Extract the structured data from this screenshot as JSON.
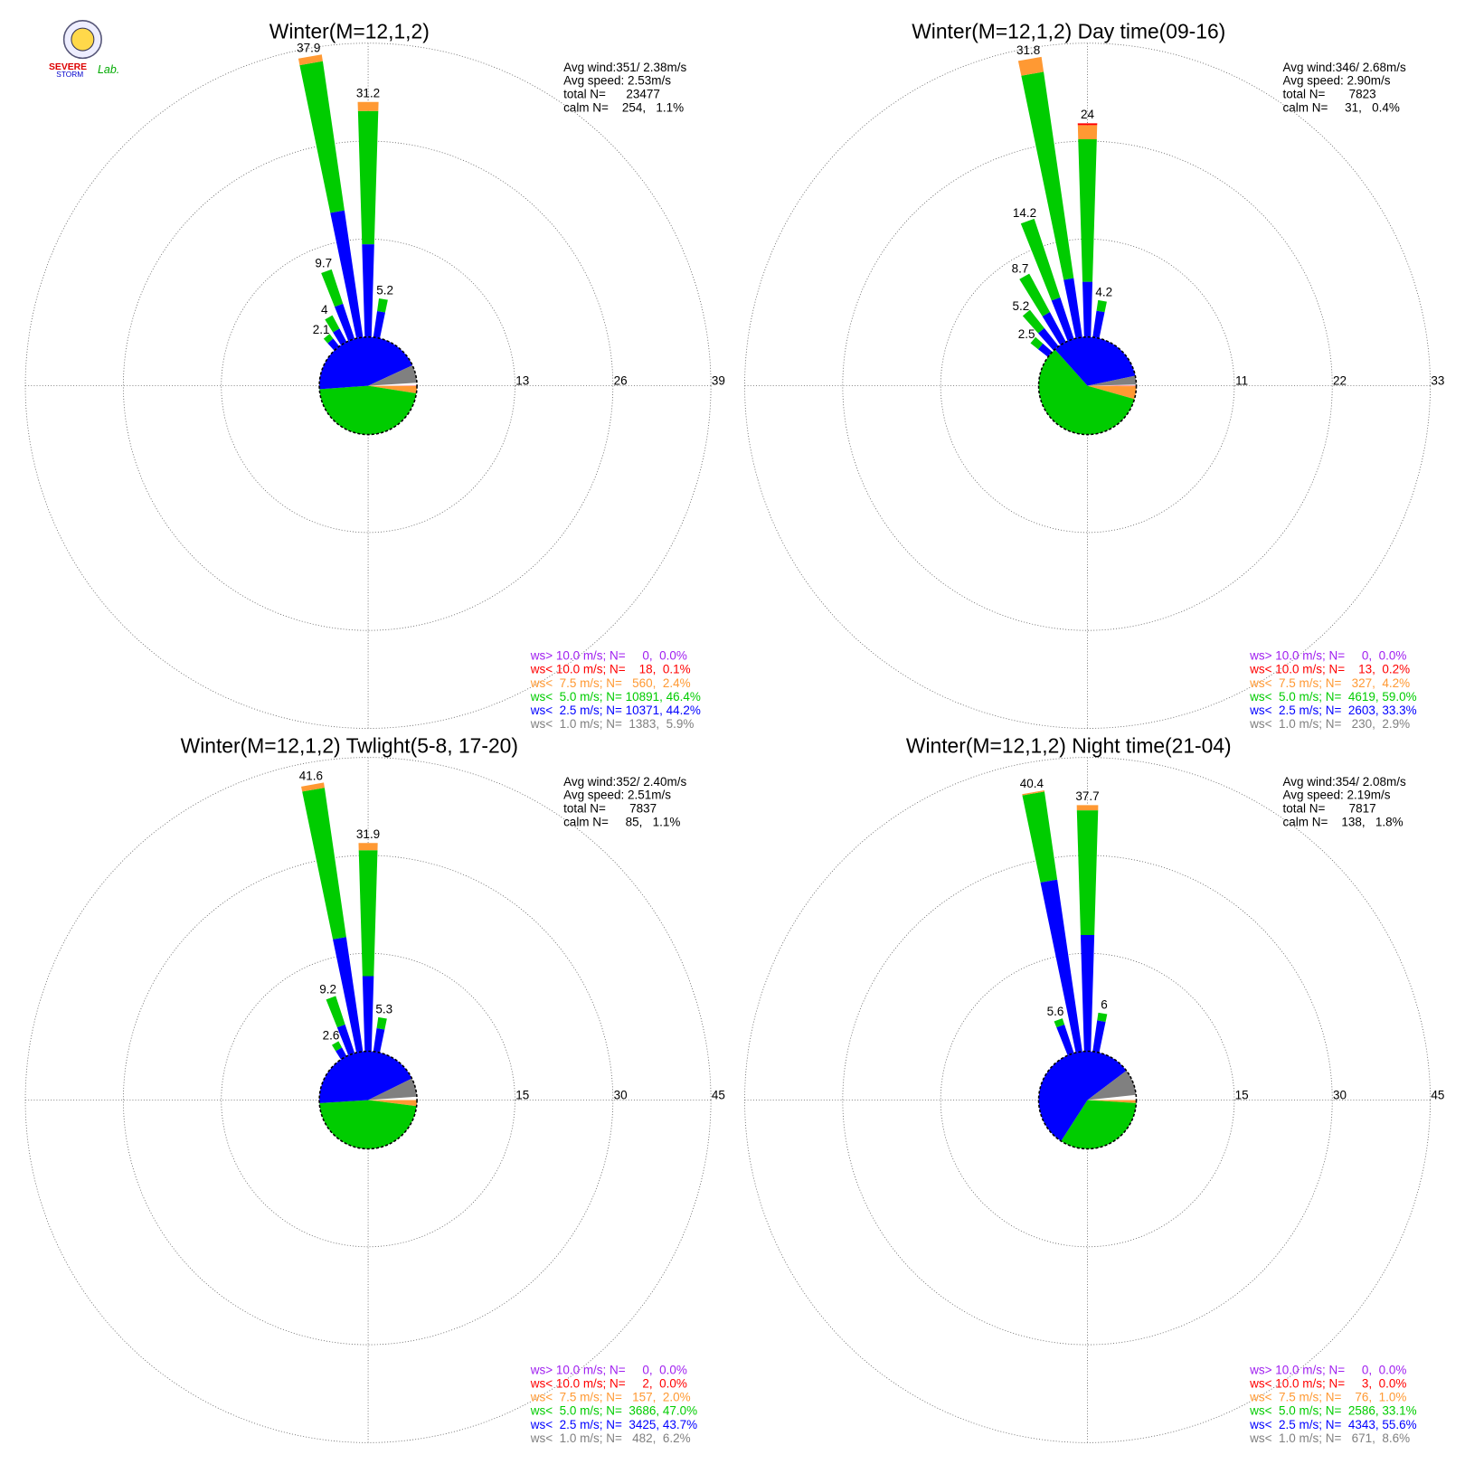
{
  "logo": {
    "line1": "SEVERE",
    "line2": "STORM",
    "lab": "Lab."
  },
  "chart_data": [
    {
      "type": "windrose",
      "title": "Winter(M=12,1,2)",
      "stats": [
        "Avg wind:351/ 2.38m/s",
        "Avg speed: 2.53m/s",
        "total N=      23477",
        "calm N=    254,   1.1%"
      ],
      "rlim": [
        0,
        39
      ],
      "rticks": [
        13,
        26,
        39
      ],
      "directions": [
        320,
        330,
        340,
        350,
        0,
        10
      ],
      "series": [
        {
          "color": "#0000ff",
          "values": [
            1.3,
            2.0,
            4.9,
            17.0,
            12.3,
            3.5
          ]
        },
        {
          "color": "#00cc00",
          "values": [
            0.8,
            2.0,
            4.8,
            20.0,
            17.7,
            1.7
          ]
        },
        {
          "color": "#ff9933",
          "values": [
            0,
            0,
            0,
            0.9,
            1.2,
            0
          ]
        }
      ],
      "totals": [
        2.1,
        4.0,
        9.7,
        37.9,
        31.2,
        5.2
      ],
      "pie": {
        "colors": [
          "#a020f0",
          "#ff0000",
          "#ff9933",
          "#00cc00",
          "#0000ff",
          "#808080"
        ],
        "values": [
          0.0,
          0.1,
          2.4,
          46.4,
          44.2,
          5.9
        ],
        "value_labels": [
          "ws> 10.0 m/s; N=     0,  0.0%",
          "ws< 10.0 m/s; N=    18,  0.1%",
          "ws<  7.5 m/s; N=   560,  2.4%",
          "ws<  5.0 m/s; N= 10891, 46.4%",
          "ws<  2.5 m/s; N= 10371, 44.2%",
          "ws<  1.0 m/s; N=  1383,  5.9%"
        ]
      }
    },
    {
      "type": "windrose",
      "title": "Winter(M=12,1,2) Day time(09-16)",
      "stats": [
        "Avg wind:346/ 2.68m/s",
        "Avg speed: 2.90m/s",
        "total N=       7823",
        "calm N=     31,   0.4%"
      ],
      "rlim": [
        0,
        33
      ],
      "rticks": [
        11,
        22,
        33
      ],
      "directions": [
        310,
        320,
        330,
        340,
        350,
        0,
        10
      ],
      "series": [
        {
          "color": "#0000ff",
          "values": [
            1.4,
            2.6,
            3.8,
            4.9,
            6.7,
            6.2,
            3.0
          ]
        },
        {
          "color": "#00cc00",
          "values": [
            1.1,
            2.6,
            4.9,
            9.3,
            23.4,
            16.0,
            1.2
          ]
        },
        {
          "color": "#ff9933",
          "values": [
            0,
            0,
            0,
            0,
            1.7,
            1.6,
            0
          ]
        },
        {
          "color": "#ff0000",
          "values": [
            0,
            0,
            0,
            0,
            0,
            0.2,
            0
          ]
        }
      ],
      "totals": [
        2.5,
        5.2,
        8.7,
        14.2,
        31.8,
        24.0,
        4.2
      ],
      "pie": {
        "colors": [
          "#a020f0",
          "#ff0000",
          "#ff9933",
          "#00cc00",
          "#0000ff",
          "#808080"
        ],
        "values": [
          0.0,
          0.2,
          4.2,
          59.0,
          33.3,
          2.9
        ],
        "value_labels": [
          "ws> 10.0 m/s; N=     0,  0.0%",
          "ws< 10.0 m/s; N=    13,  0.2%",
          "ws<  7.5 m/s; N=   327,  4.2%",
          "ws<  5.0 m/s; N=  4619, 59.0%",
          "ws<  2.5 m/s; N=  2603, 33.3%",
          "ws<  1.0 m/s; N=   230,  2.9%"
        ]
      }
    },
    {
      "type": "windrose",
      "title": "Winter(M=12,1,2) Twlight(5-8, 17-20)",
      "stats": [
        "Avg wind:352/ 2.40m/s",
        "Avg speed: 2.51m/s",
        "total N=       7837",
        "calm N=     85,   1.1%"
      ],
      "rlim": [
        0,
        45
      ],
      "rticks": [
        15,
        30,
        45
      ],
      "directions": [
        330,
        340,
        350,
        0,
        10
      ],
      "series": [
        {
          "color": "#0000ff",
          "values": [
            1.5,
            4.6,
            17.7,
            11.5,
            3.6
          ]
        },
        {
          "color": "#00cc00",
          "values": [
            1.1,
            4.6,
            23.1,
            19.3,
            1.7
          ]
        },
        {
          "color": "#ff9933",
          "values": [
            0,
            0,
            0.8,
            1.1,
            0
          ]
        }
      ],
      "totals": [
        2.6,
        9.2,
        41.6,
        31.9,
        5.3
      ],
      "pie": {
        "colors": [
          "#a020f0",
          "#ff0000",
          "#ff9933",
          "#00cc00",
          "#0000ff",
          "#808080"
        ],
        "values": [
          0.0,
          0.0,
          2.0,
          47.0,
          43.7,
          6.2
        ],
        "value_labels": [
          "ws> 10.0 m/s; N=     0,  0.0%",
          "ws< 10.0 m/s; N=     2,  0.0%",
          "ws<  7.5 m/s; N=   157,  2.0%",
          "ws<  5.0 m/s; N=  3686, 47.0%",
          "ws<  2.5 m/s; N=  3425, 43.7%",
          "ws<  1.0 m/s; N=   482,  6.2%"
        ]
      }
    },
    {
      "type": "windrose",
      "title": "Winter(M=12,1,2) Night time(21-04)",
      "stats": [
        "Avg wind:354/ 2.08m/s",
        "Avg speed: 2.19m/s",
        "total N=       7817",
        "calm N=    138,   1.8%"
      ],
      "rlim": [
        0,
        45
      ],
      "rticks": [
        15,
        30,
        45
      ],
      "directions": [
        340,
        350,
        0,
        10
      ],
      "series": [
        {
          "color": "#0000ff",
          "values": [
            4.6,
            26.6,
            17.8,
            4.8
          ]
        },
        {
          "color": "#00cc00",
          "values": [
            1.0,
            13.6,
            19.1,
            1.2
          ]
        },
        {
          "color": "#ff9933",
          "values": [
            0,
            0.2,
            0.8,
            0
          ]
        }
      ],
      "totals": [
        5.6,
        40.4,
        37.7,
        6.0
      ],
      "pie": {
        "colors": [
          "#a020f0",
          "#ff0000",
          "#ff9933",
          "#00cc00",
          "#0000ff",
          "#808080"
        ],
        "values": [
          0.0,
          0.0,
          1.0,
          33.1,
          55.6,
          8.6
        ],
        "value_labels": [
          "ws> 10.0 m/s; N=     0,  0.0%",
          "ws< 10.0 m/s; N=     3,  0.0%",
          "ws<  7.5 m/s; N=    76,  1.0%",
          "ws<  5.0 m/s; N=  2586, 33.1%",
          "ws<  2.5 m/s; N=  4343, 55.6%",
          "ws<  1.0 m/s; N=   671,  8.6%"
        ]
      }
    }
  ]
}
